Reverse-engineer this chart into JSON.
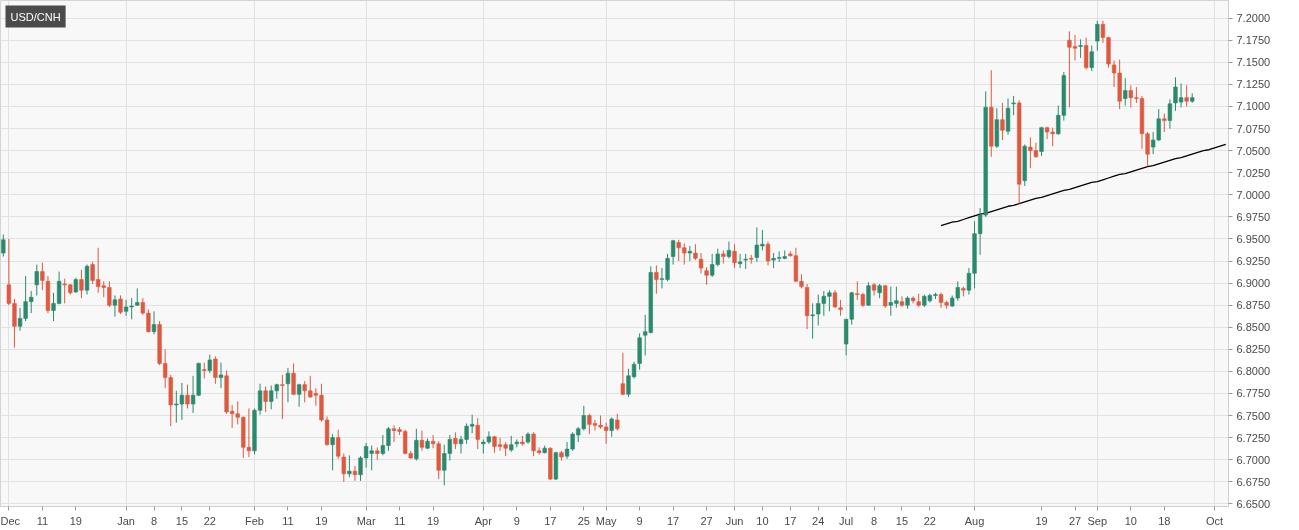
{
  "chart_data": {
    "type": "candlestick",
    "title": "USD/CNH",
    "categories": [
      null,
      "Dec",
      null,
      null,
      null,
      null,
      null,
      "11",
      null,
      null,
      null,
      null,
      null,
      "19",
      null,
      null,
      null,
      null,
      null,
      null,
      null,
      null,
      "Jan",
      null,
      null,
      null,
      null,
      "8",
      null,
      null,
      null,
      null,
      "15",
      null,
      null,
      null,
      null,
      "22",
      null,
      null,
      null,
      null,
      null,
      null,
      null,
      "Feb",
      null,
      null,
      null,
      null,
      null,
      "11",
      null,
      null,
      null,
      null,
      null,
      "19",
      null,
      null,
      null,
      null,
      null,
      null,
      null,
      "Mar",
      null,
      null,
      null,
      null,
      null,
      "11",
      null,
      null,
      null,
      null,
      null,
      "19",
      null,
      null,
      null,
      null,
      null,
      null,
      null,
      null,
      "Apr",
      null,
      null,
      null,
      null,
      null,
      "9",
      null,
      null,
      null,
      null,
      null,
      "17",
      null,
      null,
      null,
      null,
      null,
      "25",
      null,
      null,
      null,
      "May",
      null,
      null,
      null,
      null,
      null,
      "9",
      null,
      null,
      null,
      null,
      null,
      "17",
      null,
      null,
      null,
      null,
      null,
      "27",
      null,
      null,
      null,
      null,
      "Jun",
      null,
      null,
      null,
      null,
      "10",
      null,
      null,
      null,
      null,
      "17",
      null,
      null,
      null,
      null,
      "24",
      null,
      null,
      null,
      null,
      "Jul",
      null,
      null,
      null,
      null,
      "8",
      null,
      null,
      null,
      null,
      "15",
      null,
      null,
      null,
      null,
      "22",
      null,
      null,
      null,
      null,
      null,
      null,
      null,
      "Aug",
      null,
      null,
      null,
      null,
      null,
      null,
      null,
      null,
      null,
      null,
      null,
      "19",
      null,
      null,
      null,
      null,
      null,
      "27",
      null,
      null,
      null,
      "Sep",
      null,
      null,
      null,
      null,
      null,
      "10",
      null,
      null,
      null,
      null,
      null,
      "18",
      null,
      null,
      null,
      null,
      null,
      null,
      null,
      null,
      "Oct",
      null,
      null
    ],
    "ohlc": [
      [
        6.934,
        6.955,
        6.93,
        6.949
      ],
      [
        6.898,
        6.95,
        6.875,
        6.877
      ],
      [
        6.877,
        6.882,
        6.827,
        6.851
      ],
      [
        6.851,
        6.872,
        6.846,
        6.86
      ],
      [
        6.86,
        6.908,
        6.857,
        6.879
      ],
      [
        6.879,
        6.891,
        6.866,
        6.884
      ],
      [
        6.898,
        6.921,
        6.886,
        6.913
      ],
      [
        6.913,
        6.923,
        6.892,
        6.903
      ],
      [
        6.902,
        6.908,
        6.866,
        6.869
      ],
      [
        6.869,
        6.889,
        6.857,
        6.877
      ],
      [
        6.877,
        6.913,
        6.876,
        6.902
      ],
      [
        6.899,
        6.905,
        6.877,
        6.898
      ],
      [
        6.898,
        6.899,
        6.887,
        6.889
      ],
      [
        6.89,
        6.906,
        6.889,
        6.904
      ],
      [
        6.904,
        6.915,
        6.883,
        6.892
      ],
      [
        6.892,
        6.921,
        6.887,
        6.919
      ],
      [
        6.921,
        6.924,
        6.899,
        6.903
      ],
      [
        6.904,
        6.94,
        6.889,
        6.896
      ],
      [
        6.897,
        6.902,
        6.884,
        6.895
      ],
      [
        6.895,
        6.902,
        6.873,
        6.875
      ],
      [
        6.875,
        6.886,
        6.862,
        6.881
      ],
      [
        6.882,
        6.886,
        6.865,
        6.867
      ],
      [
        6.868,
        6.881,
        6.863,
        6.873
      ],
      [
        6.873,
        6.883,
        6.859,
        6.874
      ],
      [
        6.875,
        6.894,
        6.874,
        6.878
      ],
      [
        6.878,
        6.883,
        6.864,
        6.866
      ],
      [
        6.866,
        6.87,
        6.844,
        6.845
      ],
      [
        6.845,
        6.868,
        6.842,
        6.853
      ],
      [
        6.853,
        6.857,
        6.807,
        6.809
      ],
      [
        6.809,
        6.825,
        6.781,
        6.793
      ],
      [
        6.793,
        6.796,
        6.738,
        6.762
      ],
      [
        6.762,
        6.778,
        6.742,
        6.763
      ],
      [
        6.763,
        6.787,
        6.745,
        6.773
      ],
      [
        6.773,
        6.785,
        6.758,
        6.763
      ],
      [
        6.763,
        6.795,
        6.753,
        6.773
      ],
      [
        6.773,
        6.81,
        6.772,
        6.809
      ],
      [
        6.802,
        6.81,
        6.792,
        6.801
      ],
      [
        6.801,
        6.819,
        6.798,
        6.813
      ],
      [
        6.814,
        6.817,
        6.786,
        6.793
      ],
      [
        6.793,
        6.81,
        6.781,
        6.796
      ],
      [
        6.795,
        6.801,
        6.752,
        6.754
      ],
      [
        6.755,
        6.762,
        6.736,
        6.752
      ],
      [
        6.752,
        6.766,
        6.74,
        6.748
      ],
      [
        6.748,
        6.749,
        6.702,
        6.714
      ],
      [
        6.714,
        6.758,
        6.703,
        6.71
      ],
      [
        6.71,
        6.758,
        6.706,
        6.756
      ],
      [
        6.756,
        6.786,
        6.751,
        6.778
      ],
      [
        6.778,
        6.783,
        6.754,
        6.766
      ],
      [
        6.766,
        6.784,
        6.757,
        6.778
      ],
      [
        6.778,
        6.786,
        6.769,
        6.785
      ],
      [
        6.785,
        6.796,
        6.746,
        6.784
      ],
      [
        6.786,
        6.804,
        6.765,
        6.798
      ],
      [
        6.798,
        6.809,
        6.773,
        6.774
      ],
      [
        6.774,
        6.786,
        6.76,
        6.785
      ],
      [
        6.785,
        6.789,
        6.765,
        6.778
      ],
      [
        6.778,
        6.795,
        6.77,
        6.771
      ],
      [
        6.775,
        6.781,
        6.761,
        6.773
      ],
      [
        6.773,
        6.786,
        6.743,
        6.745
      ],
      [
        6.745,
        6.749,
        6.716,
        6.717
      ],
      [
        6.717,
        6.729,
        6.688,
        6.725
      ],
      [
        6.725,
        6.734,
        6.701,
        6.704
      ],
      [
        6.703,
        6.707,
        6.675,
        6.684
      ],
      [
        6.684,
        6.705,
        6.68,
        6.687
      ],
      [
        6.687,
        6.693,
        6.676,
        6.683
      ],
      [
        6.683,
        6.704,
        6.676,
        6.702
      ],
      [
        6.702,
        6.719,
        6.691,
        6.715
      ],
      [
        6.707,
        6.716,
        6.688,
        6.71
      ],
      [
        6.71,
        6.714,
        6.7,
        6.707
      ],
      [
        6.707,
        6.728,
        6.705,
        6.716
      ],
      [
        6.716,
        6.737,
        6.71,
        6.735
      ],
      [
        6.735,
        6.739,
        6.72,
        6.733
      ],
      [
        6.734,
        6.737,
        6.728,
        6.732
      ],
      [
        6.732,
        6.734,
        6.706,
        6.707
      ],
      [
        6.707,
        6.71,
        6.701,
        6.702
      ],
      [
        6.701,
        6.735,
        6.699,
        6.722
      ],
      [
        6.722,
        6.733,
        6.71,
        6.714
      ],
      [
        6.713,
        6.724,
        6.712,
        6.721
      ],
      [
        6.721,
        6.728,
        6.713,
        6.718
      ],
      [
        6.718,
        6.721,
        6.678,
        6.688
      ],
      [
        6.688,
        6.717,
        6.671,
        6.707
      ],
      [
        6.707,
        6.728,
        6.699,
        6.723
      ],
      [
        6.724,
        6.731,
        6.712,
        6.718
      ],
      [
        6.718,
        6.727,
        6.707,
        6.723
      ],
      [
        6.723,
        6.741,
        6.718,
        6.738
      ],
      [
        6.738,
        6.751,
        6.73,
        6.74
      ],
      [
        6.739,
        6.747,
        6.712,
        6.723
      ],
      [
        6.718,
        6.723,
        6.707,
        6.72
      ],
      [
        6.72,
        6.732,
        6.718,
        6.726
      ],
      [
        6.726,
        6.727,
        6.708,
        6.715
      ],
      [
        6.717,
        6.725,
        6.71,
        6.715
      ],
      [
        6.717,
        6.72,
        6.704,
        6.713
      ],
      [
        6.711,
        6.727,
        6.709,
        6.717
      ],
      [
        6.718,
        6.723,
        6.714,
        6.72
      ],
      [
        6.72,
        6.727,
        6.716,
        6.718
      ],
      [
        6.72,
        6.731,
        6.718,
        6.729
      ],
      [
        6.729,
        6.731,
        6.704,
        6.71
      ],
      [
        6.71,
        6.714,
        6.706,
        6.708
      ],
      [
        6.708,
        6.716,
        6.707,
        6.713
      ],
      [
        6.713,
        6.714,
        6.677,
        6.678
      ],
      [
        6.678,
        6.709,
        6.677,
        6.708
      ],
      [
        6.708,
        6.71,
        6.699,
        6.703
      ],
      [
        6.704,
        6.72,
        6.701,
        6.712
      ],
      [
        6.712,
        6.731,
        6.71,
        6.729
      ],
      [
        6.728,
        6.737,
        6.72,
        6.735
      ],
      [
        6.735,
        6.761,
        6.733,
        6.75
      ],
      [
        6.75,
        6.752,
        6.729,
        6.74
      ],
      [
        6.741,
        6.745,
        6.733,
        6.739
      ],
      [
        6.739,
        6.75,
        6.735,
        6.737
      ],
      [
        6.737,
        6.742,
        6.718,
        6.733
      ],
      [
        6.733,
        6.748,
        6.726,
        6.746
      ],
      [
        6.745,
        6.752,
        6.733,
        6.735
      ],
      [
        6.786,
        6.821,
        6.773,
        6.774
      ],
      [
        6.774,
        6.803,
        6.771,
        6.795
      ],
      [
        6.794,
        6.811,
        6.792,
        6.808
      ],
      [
        6.809,
        6.843,
        6.802,
        6.838
      ],
      [
        6.841,
        6.864,
        6.818,
        6.845
      ],
      [
        6.844,
        6.919,
        6.843,
        6.912
      ],
      [
        6.912,
        6.92,
        6.888,
        6.904
      ],
      [
        6.904,
        6.917,
        6.894,
        6.905
      ],
      [
        6.904,
        6.933,
        6.902,
        6.928
      ],
      [
        6.93,
        6.949,
        6.921,
        6.948
      ],
      [
        6.946,
        6.949,
        6.925,
        6.94
      ],
      [
        6.94,
        6.945,
        6.921,
        6.934
      ],
      [
        6.934,
        6.942,
        6.925,
        6.936
      ],
      [
        6.934,
        6.944,
        6.926,
        6.928
      ],
      [
        6.927,
        6.934,
        6.911,
        6.917
      ],
      [
        6.914,
        6.918,
        6.898,
        6.909
      ],
      [
        6.909,
        6.933,
        6.907,
        6.921
      ],
      [
        6.921,
        6.939,
        6.919,
        6.933
      ],
      [
        6.933,
        6.937,
        6.922,
        6.93
      ],
      [
        6.93,
        6.947,
        6.928,
        6.937
      ],
      [
        6.936,
        6.944,
        6.917,
        6.923
      ],
      [
        6.922,
        6.933,
        6.917,
        6.924
      ],
      [
        6.926,
        6.933,
        6.916,
        6.927
      ],
      [
        6.928,
        6.932,
        6.922,
        6.927
      ],
      [
        6.929,
        6.963,
        6.924,
        6.943
      ],
      [
        6.942,
        6.96,
        6.937,
        6.944
      ],
      [
        6.944,
        6.947,
        6.92,
        6.925
      ],
      [
        6.926,
        6.934,
        6.917,
        6.928
      ],
      [
        6.928,
        6.936,
        6.924,
        6.929
      ],
      [
        6.928,
        6.937,
        6.927,
        6.93
      ],
      [
        6.933,
        6.936,
        6.93,
        6.931
      ],
      [
        6.931,
        6.94,
        6.901,
        6.902
      ],
      [
        6.902,
        6.91,
        6.894,
        6.896
      ],
      [
        6.895,
        6.899,
        6.848,
        6.863
      ],
      [
        6.863,
        6.877,
        6.837,
        6.864
      ],
      [
        6.865,
        6.887,
        6.852,
        6.877
      ],
      [
        6.877,
        6.891,
        6.863,
        6.885
      ],
      [
        6.885,
        6.892,
        6.868,
        6.889
      ],
      [
        6.889,
        6.892,
        6.872,
        6.873
      ],
      [
        6.872,
        6.881,
        6.863,
        6.87
      ],
      [
        6.831,
        6.859,
        6.818,
        6.859
      ],
      [
        6.859,
        6.89,
        6.853,
        6.889
      ],
      [
        6.888,
        6.902,
        6.881,
        6.887
      ],
      [
        6.887,
        6.889,
        6.873,
        6.875
      ],
      [
        6.875,
        6.901,
        6.874,
        6.897
      ],
      [
        6.898,
        6.9,
        6.886,
        6.892
      ],
      [
        6.889,
        6.899,
        6.883,
        6.897
      ],
      [
        6.897,
        6.898,
        6.872,
        6.874
      ],
      [
        6.875,
        6.896,
        6.863,
        6.878
      ],
      [
        6.877,
        6.896,
        6.872,
        6.88
      ],
      [
        6.879,
        6.885,
        6.873,
        6.875
      ],
      [
        6.875,
        6.885,
        6.871,
        6.883
      ],
      [
        6.883,
        6.885,
        6.877,
        6.88
      ],
      [
        6.879,
        6.888,
        6.873,
        6.875
      ],
      [
        6.875,
        6.887,
        6.873,
        6.885
      ],
      [
        6.88,
        6.888,
        6.878,
        6.886
      ],
      [
        6.886,
        6.889,
        6.882,
        6.887
      ],
      [
        6.887,
        6.889,
        6.872,
        6.878
      ],
      [
        6.878,
        6.88,
        6.871,
        6.875
      ],
      [
        6.874,
        6.886,
        6.873,
        6.883
      ],
      [
        6.883,
        6.902,
        6.88,
        6.895
      ],
      [
        6.894,
        6.896,
        6.885,
        6.892
      ],
      [
        6.892,
        6.917,
        6.887,
        6.911
      ],
      [
        6.911,
        6.97,
        6.894,
        6.956
      ],
      [
        6.956,
        6.985,
        6.932,
        6.977
      ],
      [
        6.977,
        7.117,
        6.975,
        7.099
      ],
      [
        7.099,
        7.141,
        7.043,
        7.055
      ],
      [
        7.055,
        7.098,
        7.053,
        7.085
      ],
      [
        7.085,
        7.104,
        7.062,
        7.073
      ],
      [
        7.072,
        7.109,
        7.068,
        7.098
      ],
      [
        7.103,
        7.112,
        7.09,
        7.104
      ],
      [
        7.104,
        7.107,
        6.99,
        7.012
      ],
      [
        7.016,
        7.057,
        7.01,
        7.055
      ],
      [
        7.054,
        7.065,
        7.03,
        7.05
      ],
      [
        7.05,
        7.059,
        7.042,
        7.043
      ],
      [
        7.049,
        7.077,
        7.044,
        7.076
      ],
      [
        7.076,
        7.077,
        7.063,
        7.071
      ],
      [
        7.071,
        7.076,
        7.055,
        7.069
      ],
      [
        7.069,
        7.101,
        7.068,
        7.09
      ],
      [
        7.09,
        7.139,
        7.084,
        7.135
      ],
      [
        7.175,
        7.185,
        7.099,
        7.167
      ],
      [
        7.168,
        7.181,
        7.152,
        7.166
      ],
      [
        7.168,
        7.176,
        7.155,
        7.169
      ],
      [
        7.169,
        7.178,
        7.142,
        7.144
      ],
      [
        7.144,
        7.169,
        7.14,
        7.162
      ],
      [
        7.174,
        7.197,
        7.163,
        7.193
      ],
      [
        7.193,
        7.197,
        7.172,
        7.178
      ],
      [
        7.178,
        7.179,
        7.144,
        7.148
      ],
      [
        7.147,
        7.152,
        7.122,
        7.138
      ],
      [
        7.138,
        7.153,
        7.097,
        7.106
      ],
      [
        7.109,
        7.132,
        7.101,
        7.118
      ],
      [
        7.118,
        7.124,
        7.099,
        7.11
      ],
      [
        7.11,
        7.122,
        7.104,
        7.109
      ],
      [
        7.109,
        7.112,
        7.052,
        7.069
      ],
      [
        7.069,
        7.071,
        7.032,
        7.046
      ],
      [
        7.054,
        7.071,
        7.046,
        7.062
      ],
      [
        7.062,
        7.097,
        7.061,
        7.086
      ],
      [
        7.086,
        7.092,
        7.071,
        7.084
      ],
      [
        7.084,
        7.108,
        7.075,
        7.103
      ],
      [
        7.104,
        7.133,
        7.095,
        7.122
      ],
      [
        7.105,
        7.126,
        7.099,
        7.11
      ],
      [
        7.11,
        7.124,
        7.1,
        7.106
      ],
      [
        7.106,
        7.115,
        7.104,
        7.11
      ],
      null,
      null,
      null,
      null,
      null,
      null
    ],
    "colors": [
      "#2b8a6e",
      "#dd5a41",
      "#dd5a41",
      "#2b8a6e",
      "#2b8a6e",
      "#2b8a6e",
      "#2b8a6e",
      "#dd5a41",
      "#dd5a41",
      "#2b8a6e",
      "#2b8a6e",
      "#dd5a41",
      "#dd5a41",
      "#2b8a6e",
      "#dd5a41",
      "#2b8a6e",
      "#dd5a41",
      "#dd5a41",
      "#dd5a41",
      "#dd5a41",
      "#2b8a6e",
      "#dd5a41",
      "#2b8a6e",
      "#2b8a6e",
      "#2b8a6e",
      "#dd5a41",
      "#dd5a41",
      "#2b8a6e",
      "#dd5a41",
      "#dd5a41",
      "#dd5a41",
      "#2b8a6e",
      "#2b8a6e",
      "#dd5a41",
      "#2b8a6e",
      "#2b8a6e",
      "#dd5a41",
      "#2b8a6e",
      "#dd5a41",
      "#2b8a6e",
      "#dd5a41",
      "#dd5a41",
      "#dd5a41",
      "#dd5a41",
      "#dd5a41",
      "#2b8a6e",
      "#2b8a6e",
      "#dd5a41",
      "#2b8a6e",
      "#2b8a6e",
      "#dd5a41",
      "#2b8a6e",
      "#dd5a41",
      "#2b8a6e",
      "#dd5a41",
      "#dd5a41",
      "#dd5a41",
      "#dd5a41",
      "#dd5a41",
      "#2b8a6e",
      "#dd5a41",
      "#dd5a41",
      "#2b8a6e",
      "#dd5a41",
      "#2b8a6e",
      "#2b8a6e",
      "#2b8a6e",
      "#dd5a41",
      "#2b8a6e",
      "#2b8a6e",
      "#dd5a41",
      "#dd5a41",
      "#dd5a41",
      "#dd5a41",
      "#2b8a6e",
      "#dd5a41",
      "#2b8a6e",
      "#dd5a41",
      "#dd5a41",
      "#2b8a6e",
      "#2b8a6e",
      "#dd5a41",
      "#2b8a6e",
      "#2b8a6e",
      "#2b8a6e",
      "#dd5a41",
      "#2b8a6e",
      "#2b8a6e",
      "#dd5a41",
      "#dd5a41",
      "#dd5a41",
      "#2b8a6e",
      "#2b8a6e",
      "#dd5a41",
      "#2b8a6e",
      "#dd5a41",
      "#dd5a41",
      "#2b8a6e",
      "#dd5a41",
      "#2b8a6e",
      "#dd5a41",
      "#2b8a6e",
      "#2b8a6e",
      "#2b8a6e",
      "#2b8a6e",
      "#dd5a41",
      "#dd5a41",
      "#dd5a41",
      "#dd5a41",
      "#2b8a6e",
      "#dd5a41",
      "#dd5a41",
      "#2b8a6e",
      "#2b8a6e",
      "#2b8a6e",
      "#2b8a6e",
      "#2b8a6e",
      "#dd5a41",
      "#2b8a6e",
      "#2b8a6e",
      "#2b8a6e",
      "#dd5a41",
      "#dd5a41",
      "#2b8a6e",
      "#dd5a41",
      "#dd5a41",
      "#dd5a41",
      "#2b8a6e",
      "#2b8a6e",
      "#dd5a41",
      "#2b8a6e",
      "#dd5a41",
      "#2b8a6e",
      "#2b8a6e",
      "#dd5a41",
      "#2b8a6e",
      "#2b8a6e",
      "#dd5a41",
      "#2b8a6e",
      "#2b8a6e",
      "#2b8a6e",
      "#dd5a41",
      "#dd5a41",
      "#dd5a41",
      "#dd5a41",
      "#2b8a6e",
      "#2b8a6e",
      "#2b8a6e",
      "#2b8a6e",
      "#dd5a41",
      "#dd5a41",
      "#2b8a6e",
      "#2b8a6e",
      "#dd5a41",
      "#dd5a41",
      "#2b8a6e",
      "#dd5a41",
      "#2b8a6e",
      "#dd5a41",
      "#2b8a6e",
      "#2b8a6e",
      "#dd5a41",
      "#2b8a6e",
      "#dd5a41",
      "#dd5a41",
      "#2b8a6e",
      "#2b8a6e",
      "#2b8a6e",
      "#dd5a41",
      "#dd5a41",
      "#2b8a6e",
      "#2b8a6e",
      "#dd5a41",
      "#2b8a6e",
      "#2b8a6e",
      "#2b8a6e",
      "#2b8a6e",
      "#dd5a41",
      "#2b8a6e",
      "#dd5a41",
      "#2b8a6e",
      "#2b8a6e",
      "#dd5a41",
      "#2b8a6e",
      "#dd5a41",
      "#dd5a41",
      "#2b8a6e",
      "#dd5a41",
      "#dd5a41",
      "#2b8a6e",
      "#2b8a6e",
      "#dd5a41",
      "#dd5a41",
      "#2b8a6e",
      "#dd5a41",
      "#2b8a6e",
      "#2b8a6e",
      "#dd5a41",
      "#dd5a41",
      "#dd5a41",
      "#dd5a41",
      "#2b8a6e",
      "#dd5a41",
      "#dd5a41",
      "#dd5a41",
      "#dd5a41",
      "#2b8a6e",
      "#2b8a6e",
      "#dd5a41",
      "#2b8a6e",
      "#2b8a6e",
      "#2b8a6e",
      "#dd5a41",
      "#2b8a6e",
      null,
      null,
      null,
      null,
      null,
      null
    ],
    "series": [
      {
        "type": "line",
        "color": "#000000",
        "values": [
          null,
          null,
          null,
          null,
          null,
          null,
          null,
          null,
          null,
          null,
          null,
          null,
          null,
          null,
          null,
          null,
          null,
          null,
          null,
          null,
          null,
          null,
          null,
          null,
          null,
          null,
          null,
          null,
          null,
          null,
          null,
          null,
          null,
          null,
          null,
          null,
          null,
          null,
          null,
          null,
          null,
          null,
          null,
          null,
          null,
          null,
          null,
          null,
          null,
          null,
          null,
          null,
          null,
          null,
          null,
          null,
          null,
          null,
          null,
          null,
          null,
          null,
          null,
          null,
          null,
          null,
          null,
          null,
          null,
          null,
          null,
          null,
          null,
          null,
          null,
          null,
          null,
          null,
          null,
          null,
          null,
          null,
          null,
          null,
          null,
          null,
          null,
          null,
          null,
          null,
          null,
          null,
          null,
          null,
          null,
          null,
          null,
          null,
          null,
          null,
          null,
          null,
          null,
          null,
          null,
          null,
          null,
          null,
          null,
          null,
          null,
          null,
          null,
          null,
          null,
          null,
          null,
          null,
          null,
          null,
          null,
          null,
          null,
          null,
          null,
          null,
          null,
          null,
          null,
          null,
          null,
          null,
          null,
          null,
          null,
          null,
          null,
          null,
          null,
          null,
          null,
          null,
          null,
          null,
          null,
          null,
          null,
          null,
          null,
          null,
          null,
          null,
          null,
          null,
          null,
          null,
          null,
          null,
          null,
          null,
          null,
          null,
          null,
          null,
          null,
          null,
          null,
          null,
          6.965,
          6.967,
          6.969,
          6.97,
          6.972,
          6.974,
          6.976,
          6.978,
          6.979,
          6.981,
          6.983,
          6.985,
          6.987,
          6.988,
          6.99,
          6.992,
          6.994,
          6.996,
          6.997,
          6.999,
          7.001,
          7.003,
          7.005,
          7.006,
          7.008,
          7.01,
          7.012,
          7.014,
          7.015,
          7.017,
          7.019,
          7.021,
          7.023,
          7.024,
          7.026,
          7.028,
          7.03,
          7.032,
          7.033,
          7.035,
          7.037,
          7.039,
          7.041,
          7.042,
          7.044,
          7.046,
          7.048,
          7.05,
          7.051,
          7.053,
          7.055,
          7.057
        ]
      }
    ],
    "ylim": [
      6.647,
      7.22
    ],
    "yticks": [
      {
        "value": 6.65,
        "label": "6.6500"
      },
      {
        "value": 6.675,
        "label": "6.6750"
      },
      {
        "value": 6.7,
        "label": "6.7000"
      },
      {
        "value": 6.725,
        "label": "6.7250"
      },
      {
        "value": 6.75,
        "label": "6.7500"
      },
      {
        "value": 6.775,
        "label": "6.7750"
      },
      {
        "value": 6.8,
        "label": "6.8000"
      },
      {
        "value": 6.825,
        "label": "6.8250"
      },
      {
        "value": 6.85,
        "label": "6.8500"
      },
      {
        "value": 6.875,
        "label": "6.8750"
      },
      {
        "value": 6.9,
        "label": "6.9000"
      },
      {
        "value": 6.925,
        "label": "6.9250"
      },
      {
        "value": 6.95,
        "label": "6.9500"
      },
      {
        "value": 6.975,
        "label": "6.9750"
      },
      {
        "value": 7.0,
        "label": "7.0000"
      },
      {
        "value": 7.025,
        "label": "7.0250"
      },
      {
        "value": 7.05,
        "label": "7.0500"
      },
      {
        "value": 7.075,
        "label": "7.0750"
      },
      {
        "value": 7.1,
        "label": "7.1000"
      },
      {
        "value": 7.125,
        "label": "7.1250"
      },
      {
        "value": 7.15,
        "label": "7.1500"
      },
      {
        "value": 7.175,
        "label": "7.1750"
      },
      {
        "value": 7.2,
        "label": "7.2000"
      }
    ],
    "grid": true
  }
}
